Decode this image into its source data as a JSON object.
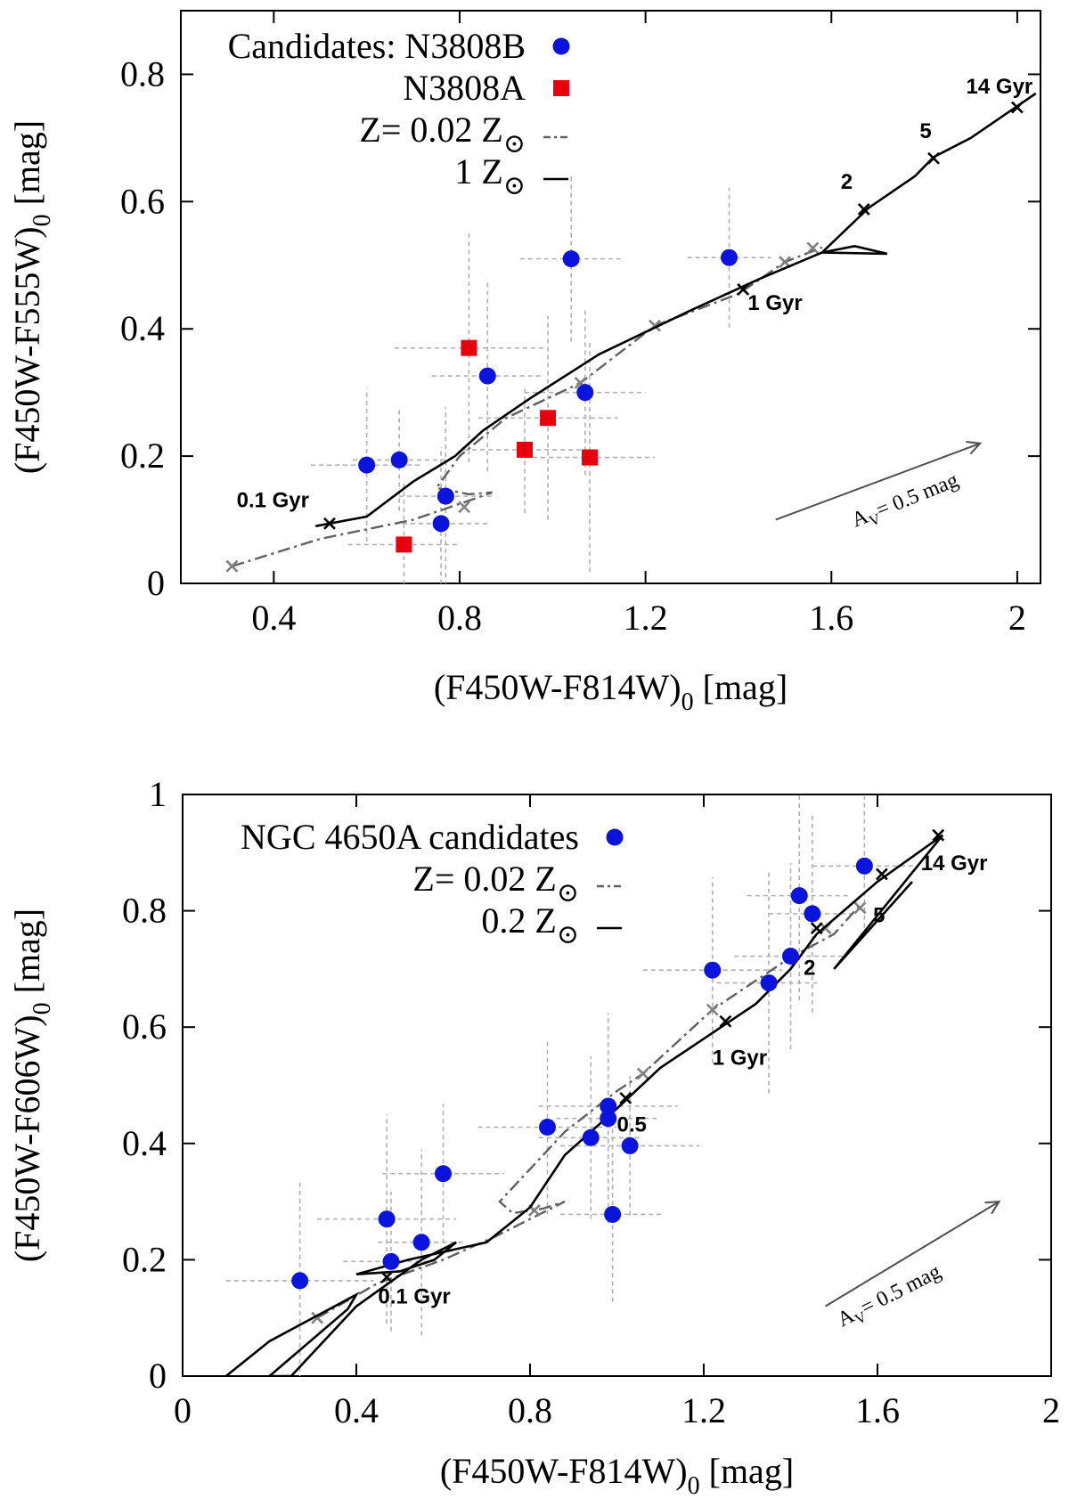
{
  "chart_data": [
    {
      "type": "scatter",
      "panel": "top",
      "xlabel": "(F450W-F814W)",
      "ylabel": "(F450W-F555W)",
      "label_subscript": "0",
      "label_unit": "[mag]",
      "xlim": [
        0.2,
        2.05
      ],
      "ylim": [
        0,
        0.9
      ],
      "xticks": [
        0.4,
        0.8,
        1.2,
        1.6,
        2.0
      ],
      "xtick_labels": [
        "0.4",
        "0.8",
        "1.2",
        "1.6",
        "2"
      ],
      "yticks": [
        0,
        0.2,
        0.4,
        0.6,
        0.8
      ],
      "ytick_labels": [
        "0",
        "0.2",
        "0.4",
        "0.6",
        "0.8"
      ],
      "legend": [
        {
          "label": "Candidates: N3808B",
          "marker": "circle"
        },
        {
          "label": "N3808A",
          "marker": "square"
        },
        {
          "label": "Z= 0.02 Z",
          "sun": true,
          "line": "dashdot"
        },
        {
          "label": "1 Z",
          "sun": true,
          "line": "solid"
        }
      ],
      "series": [
        {
          "name": "N3808B",
          "color": "#0a14dc",
          "marker": "circle",
          "points": [
            {
              "x": 0.6,
              "y": 0.186,
              "xerr": 0.12,
              "yerr": 0.12
            },
            {
              "x": 0.67,
              "y": 0.194,
              "xerr": 0.1,
              "yerr": 0.08
            },
            {
              "x": 0.77,
              "y": 0.137,
              "xerr": 0.1,
              "yerr": 0.14
            },
            {
              "x": 0.76,
              "y": 0.094,
              "xerr": 0.1,
              "yerr": 0.12
            },
            {
              "x": 0.86,
              "y": 0.326,
              "xerr": 0.12,
              "yerr": 0.15
            },
            {
              "x": 1.07,
              "y": 0.3,
              "xerr": 0.13,
              "yerr": 0.13
            },
            {
              "x": 1.04,
              "y": 0.51,
              "xerr": 0.11,
              "yerr": 0.13
            },
            {
              "x": 1.38,
              "y": 0.512,
              "xerr": 0.09,
              "yerr": 0.11
            }
          ]
        },
        {
          "name": "N3808A",
          "color": "#e8000c",
          "marker": "square",
          "points": [
            {
              "x": 0.82,
              "y": 0.37,
              "xerr": 0.16,
              "yerr": 0.18
            },
            {
              "x": 0.99,
              "y": 0.26,
              "xerr": 0.15,
              "yerr": 0.16
            },
            {
              "x": 0.94,
              "y": 0.21,
              "xerr": 0.13,
              "yerr": 0.1
            },
            {
              "x": 1.08,
              "y": 0.198,
              "xerr": 0.14,
              "yerr": 0.18
            },
            {
              "x": 0.68,
              "y": 0.061,
              "xerr": 0.12,
              "yerr": 0.1
            }
          ]
        }
      ],
      "models": [
        {
          "name": "Z= 0.02 Z",
          "style": "dashdot",
          "color": "#606060",
          "x": [
            0.31,
            0.5,
            0.7,
            0.82,
            0.87,
            0.82,
            0.75,
            0.8,
            0.9,
            1.06,
            1.22,
            1.4,
            1.5,
            1.58
          ],
          "y": [
            0.027,
            0.07,
            0.1,
            0.13,
            0.143,
            0.14,
            0.15,
            0.2,
            0.26,
            0.315,
            0.405,
            0.455,
            0.505,
            0.528
          ],
          "marks_x": [
            0.31,
            0.81,
            1.06,
            1.22,
            1.5,
            1.56
          ],
          "marks_y": [
            0.027,
            0.12,
            0.315,
            0.405,
            0.505,
            0.527
          ]
        },
        {
          "name": "1 Z",
          "style": "solid",
          "color": "#000000",
          "x": [
            0.49,
            0.6,
            0.7,
            0.79,
            0.85,
            0.95,
            1.1,
            1.3,
            1.45,
            1.58,
            1.65,
            1.72,
            1.58,
            1.63,
            1.68,
            1.78,
            1.82,
            1.9,
            2.0,
            2.04
          ],
          "y": [
            0.09,
            0.105,
            0.16,
            0.2,
            0.24,
            0.29,
            0.36,
            0.43,
            0.48,
            0.52,
            0.53,
            0.518,
            0.52,
            0.555,
            0.59,
            0.64,
            0.67,
            0.7,
            0.75,
            0.77
          ],
          "marks_x": [
            0.52,
            1.41,
            1.67,
            1.82,
            2.0
          ],
          "marks_y": [
            0.094,
            0.462,
            0.588,
            0.668,
            0.748
          ]
        }
      ],
      "annotations": [
        {
          "text": "0.1 Gyr",
          "x": 0.32,
          "y": 0.12
        },
        {
          "text": "1 Gyr",
          "x": 1.42,
          "y": 0.43
        },
        {
          "text": "2",
          "x": 1.62,
          "y": 0.62
        },
        {
          "text": "5",
          "x": 1.79,
          "y": 0.7
        },
        {
          "text": "14 Gyr",
          "x": 1.89,
          "y": 0.77
        }
      ],
      "extinction_label": "= 0.5 mag",
      "extinction_vector": {
        "from": [
          1.48,
          0.1
        ],
        "to": [
          1.92,
          0.22
        ]
      }
    },
    {
      "type": "scatter",
      "panel": "bottom",
      "xlabel": "(F450W-F814W)",
      "ylabel": "(F450W-F606W)",
      "label_subscript": "0",
      "label_unit": "[mag]",
      "xlim": [
        0,
        2
      ],
      "ylim": [
        0,
        1
      ],
      "xticks": [
        0,
        0.4,
        0.8,
        1.2,
        1.6,
        2.0
      ],
      "xtick_labels": [
        "0",
        "0.4",
        "0.8",
        "1.2",
        "1.6",
        "2"
      ],
      "yticks": [
        0,
        0.2,
        0.4,
        0.6,
        0.8,
        1.0
      ],
      "ytick_labels": [
        "0",
        "0.2",
        "0.4",
        "0.6",
        "0.8",
        "1"
      ],
      "legend": [
        {
          "label": "NGC 4650A candidates",
          "marker": "circle"
        },
        {
          "label": "Z= 0.02 Z",
          "sun": true,
          "line": "dashdot"
        },
        {
          "label": "0.2 Z",
          "sun": true,
          "line": "solid"
        }
      ],
      "series": [
        {
          "name": "NGC 4650A candidates",
          "color": "#0a14dc",
          "marker": "circle",
          "points": [
            {
              "x": 0.27,
              "y": 0.164,
              "xerr": 0.17,
              "yerr": 0.17
            },
            {
              "x": 0.47,
              "y": 0.27,
              "xerr": 0.16,
              "yerr": 0.18
            },
            {
              "x": 0.48,
              "y": 0.197,
              "xerr": 0.11,
              "yerr": 0.12
            },
            {
              "x": 0.55,
              "y": 0.23,
              "xerr": 0.1,
              "yerr": 0.16
            },
            {
              "x": 0.6,
              "y": 0.348,
              "xerr": 0.14,
              "yerr": 0.12
            },
            {
              "x": 0.84,
              "y": 0.428,
              "xerr": 0.16,
              "yerr": 0.15
            },
            {
              "x": 0.94,
              "y": 0.41,
              "xerr": 0.12,
              "yerr": 0.14
            },
            {
              "x": 0.98,
              "y": 0.464,
              "xerr": 0.16,
              "yerr": 0.16
            },
            {
              "x": 0.98,
              "y": 0.443,
              "xerr": 0.12,
              "yerr": 0.18
            },
            {
              "x": 1.03,
              "y": 0.396,
              "xerr": 0.16,
              "yerr": 0.12
            },
            {
              "x": 0.99,
              "y": 0.278,
              "xerr": 0.12,
              "yerr": 0.15
            },
            {
              "x": 1.22,
              "y": 0.698,
              "xerr": 0.16,
              "yerr": 0.16
            },
            {
              "x": 1.35,
              "y": 0.676,
              "xerr": 0.12,
              "yerr": 0.19
            },
            {
              "x": 1.4,
              "y": 0.722,
              "xerr": 0.13,
              "yerr": 0.16
            },
            {
              "x": 1.42,
              "y": 0.826,
              "xerr": 0.12,
              "yerr": 0.18
            },
            {
              "x": 1.45,
              "y": 0.795,
              "xerr": 0.1,
              "yerr": 0.17
            },
            {
              "x": 1.57,
              "y": 0.877,
              "xerr": 0.12,
              "yerr": 0.12
            }
          ]
        }
      ],
      "models": [
        {
          "name": "Z= 0.02 Z",
          "style": "dashdot",
          "color": "#606060",
          "x": [
            0.31,
            0.45,
            0.6,
            0.72,
            0.8,
            0.88,
            0.83,
            0.76,
            0.73,
            0.78,
            0.88,
            1.0,
            1.06,
            1.22,
            1.4,
            1.5,
            1.56
          ],
          "y": [
            0.1,
            0.16,
            0.2,
            0.24,
            0.27,
            0.3,
            0.288,
            0.28,
            0.3,
            0.34,
            0.42,
            0.49,
            0.52,
            0.63,
            0.72,
            0.76,
            0.81
          ],
          "marks_x": [
            0.31,
            0.81,
            1.06,
            1.22,
            1.48,
            1.56
          ],
          "marks_y": [
            0.1,
            0.285,
            0.52,
            0.63,
            0.77,
            0.805
          ]
        },
        {
          "name": "0.2 Z",
          "style": "solid",
          "color": "#000000",
          "x": [
            0.1,
            0.2,
            0.4,
            0.38,
            0.2,
            0.25,
            0.4,
            0.55,
            0.63,
            0.58,
            0.5,
            0.4,
            0.52,
            0.7,
            0.8,
            0.88,
            1.0,
            1.1,
            1.24,
            1.32,
            1.4,
            1.46,
            1.6,
            1.75,
            1.5,
            1.68
          ],
          "y": [
            0.0,
            0.06,
            0.14,
            0.115,
            0.0,
            0.0,
            0.12,
            0.2,
            0.23,
            0.2,
            0.18,
            0.175,
            0.2,
            0.23,
            0.29,
            0.38,
            0.46,
            0.53,
            0.6,
            0.64,
            0.7,
            0.76,
            0.85,
            0.93,
            0.7,
            0.85
          ],
          "marks_x": [
            0.47,
            1.02,
            1.25,
            1.4,
            1.46,
            1.61,
            1.74
          ],
          "marks_y": [
            0.17,
            0.478,
            0.61,
            0.72,
            0.77,
            0.863,
            0.93
          ]
        }
      ],
      "annotations": [
        {
          "text": "0.1 Gyr",
          "x": 0.45,
          "y": 0.125
        },
        {
          "text": "0.5",
          "x": 1.0,
          "y": 0.42
        },
        {
          "text": "1 Gyr",
          "x": 1.22,
          "y": 0.535
        },
        {
          "text": "2",
          "x": 1.43,
          "y": 0.69
        },
        {
          "text": "5",
          "x": 1.59,
          "y": 0.78
        },
        {
          "text": "14 Gyr",
          "x": 1.7,
          "y": 0.87
        }
      ],
      "extinction_label": "= 0.5 mag",
      "extinction_vector": {
        "from": [
          1.48,
          0.12
        ],
        "to": [
          1.88,
          0.3
        ]
      }
    }
  ]
}
